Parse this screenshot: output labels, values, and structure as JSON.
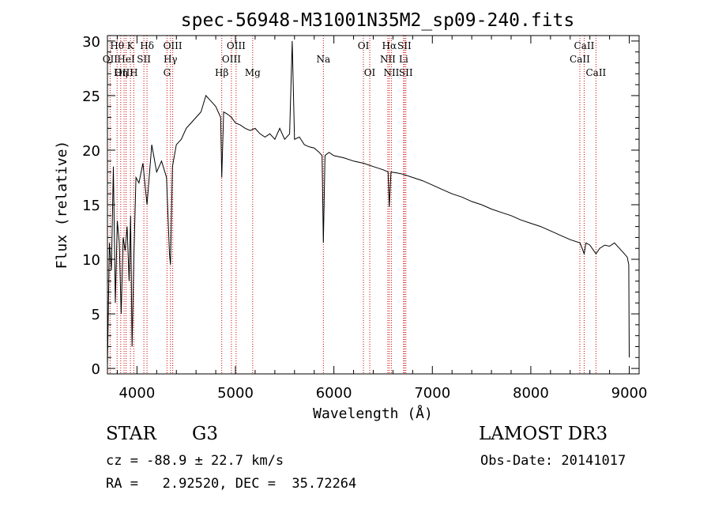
{
  "chart_data": {
    "type": "line",
    "title": "spec-56948-M31001N35M2_sp09-240.fits",
    "xlabel": "Wavelength (Å)",
    "ylabel": "Flux (relative)",
    "xlim": [
      3700,
      9100
    ],
    "ylim": [
      -0.5,
      30.5
    ],
    "xticks": [
      4000,
      5000,
      6000,
      7000,
      8000,
      9000
    ],
    "xtick_labels": [
      "4000",
      "5000",
      "6000",
      "7000",
      "8000",
      "9000"
    ],
    "yticks": [
      0,
      5,
      10,
      15,
      20,
      25,
      30
    ],
    "ytick_labels": [
      "0",
      "5",
      "10",
      "15",
      "20",
      "25",
      "30"
    ],
    "grid": false,
    "series": [
      {
        "name": "spectrum",
        "x": [
          3700,
          3720,
          3740,
          3760,
          3780,
          3800,
          3820,
          3840,
          3860,
          3880,
          3900,
          3920,
          3935,
          3950,
          3968,
          3990,
          4020,
          4060,
          4102,
          4150,
          4200,
          4250,
          4300,
          4330,
          4340,
          4360,
          4400,
          4450,
          4500,
          4550,
          4600,
          4650,
          4700,
          4750,
          4800,
          4850,
          4861,
          4880,
          4920,
          4960,
          5000,
          5050,
          5100,
          5150,
          5200,
          5250,
          5300,
          5350,
          5400,
          5450,
          5500,
          5550,
          5577,
          5600,
          5650,
          5700,
          5750,
          5800,
          5850,
          5880,
          5893,
          5910,
          5950,
          6000,
          6100,
          6200,
          6300,
          6400,
          6500,
          6550,
          6563,
          6580,
          6650,
          6700,
          6800,
          6900,
          7000,
          7100,
          7200,
          7300,
          7400,
          7500,
          7600,
          7700,
          7800,
          7900,
          8000,
          8100,
          8200,
          8300,
          8400,
          8500,
          8542,
          8560,
          8600,
          8662,
          8700,
          8750,
          8800,
          8850,
          8900,
          8950,
          8980,
          8995,
          9000
        ],
        "y": [
          0.2,
          11.5,
          9.0,
          18.5,
          6.0,
          13.5,
          11.5,
          5.0,
          12.0,
          10.8,
          13.0,
          8.0,
          14.0,
          2.0,
          10.0,
          17.5,
          17.0,
          18.8,
          15.0,
          20.5,
          18.0,
          19.0,
          17.5,
          10.5,
          9.5,
          18.5,
          20.5,
          21.0,
          22.0,
          22.5,
          23.0,
          23.5,
          25.0,
          24.5,
          24.0,
          23.0,
          17.5,
          23.5,
          23.3,
          23.0,
          22.5,
          22.3,
          22.0,
          21.8,
          22.0,
          21.5,
          21.2,
          21.5,
          21.0,
          22.0,
          21.0,
          21.5,
          30.0,
          21.0,
          21.2,
          20.5,
          20.3,
          20.2,
          19.8,
          19.5,
          11.5,
          19.5,
          19.8,
          19.5,
          19.3,
          19.0,
          18.8,
          18.5,
          18.2,
          18.0,
          14.8,
          18.0,
          17.9,
          17.8,
          17.5,
          17.2,
          16.8,
          16.4,
          16.0,
          15.7,
          15.3,
          15.0,
          14.6,
          14.3,
          14.0,
          13.6,
          13.3,
          13.0,
          12.6,
          12.2,
          11.8,
          11.5,
          10.5,
          11.5,
          11.3,
          10.5,
          11.0,
          11.3,
          11.2,
          11.5,
          11.0,
          10.5,
          10.2,
          9.5,
          1.0
        ]
      }
    ],
    "line_labels": [
      {
        "name": "Hθ",
        "x": 3798,
        "row": 1
      },
      {
        "name": "OII",
        "x": 3727,
        "row": 2
      },
      {
        "name": "OIII",
        "x": 3869,
        "row": 3
      },
      {
        "name": "K",
        "x": 3934,
        "row": 1
      },
      {
        "name": "HeI",
        "x": 3889,
        "row": 2
      },
      {
        "name": "Hη",
        "x": 3835,
        "row": 3
      },
      {
        "name": "Hδ",
        "x": 4102,
        "row": 1
      },
      {
        "name": "SII",
        "x": 4070,
        "row": 2
      },
      {
        "name": "H",
        "x": 3968,
        "row": 3
      },
      {
        "name": "OIII",
        "x": 4363,
        "row": 1
      },
      {
        "name": "Hγ",
        "x": 4340,
        "row": 2
      },
      {
        "name": "G",
        "x": 4305,
        "row": 3
      },
      {
        "name": "OIII",
        "x": 5007,
        "row": 1
      },
      {
        "name": "OIII",
        "x": 4959,
        "row": 2
      },
      {
        "name": "Hβ",
        "x": 4861,
        "row": 3
      },
      {
        "name": "Mg",
        "x": 5175,
        "row": 3
      },
      {
        "name": "Na",
        "x": 5893,
        "row": 2
      },
      {
        "name": "OI",
        "x": 6300,
        "row": 1
      },
      {
        "name": "OI",
        "x": 6364,
        "row": 3
      },
      {
        "name": "Hα",
        "x": 6563,
        "row": 1
      },
      {
        "name": "SII",
        "x": 6716,
        "row": 1
      },
      {
        "name": "NII",
        "x": 6548,
        "row": 2
      },
      {
        "name": "Li",
        "x": 6708,
        "row": 2
      },
      {
        "name": "NII",
        "x": 6584,
        "row": 3
      },
      {
        "name": "SII",
        "x": 6731,
        "row": 3
      },
      {
        "name": "CaII",
        "x": 8542,
        "row": 1
      },
      {
        "name": "CaII",
        "x": 8498,
        "row": 2
      },
      {
        "name": "CaII",
        "x": 8662,
        "row": 3
      }
    ],
    "line_marker_x": [
      3727,
      3798,
      3835,
      3869,
      3889,
      3934,
      3968,
      4070,
      4102,
      4305,
      4340,
      4363,
      4861,
      4959,
      5007,
      5175,
      5893,
      6300,
      6364,
      6548,
      6563,
      6584,
      6708,
      6716,
      6731,
      8498,
      8542,
      8662
    ]
  },
  "colors": {
    "spectrum": "#000000",
    "line_markers": "#cc0000",
    "axes": "#000000"
  },
  "footer": {
    "object_class": "STAR",
    "subclass": "G3",
    "survey": "LAMOST DR3",
    "cz_text": "cz = -88.9 ± 22.7 km/s",
    "obs_date_text": "Obs-Date: 20141017",
    "coords_text": "RA =   2.92520, DEC =  35.72264"
  }
}
